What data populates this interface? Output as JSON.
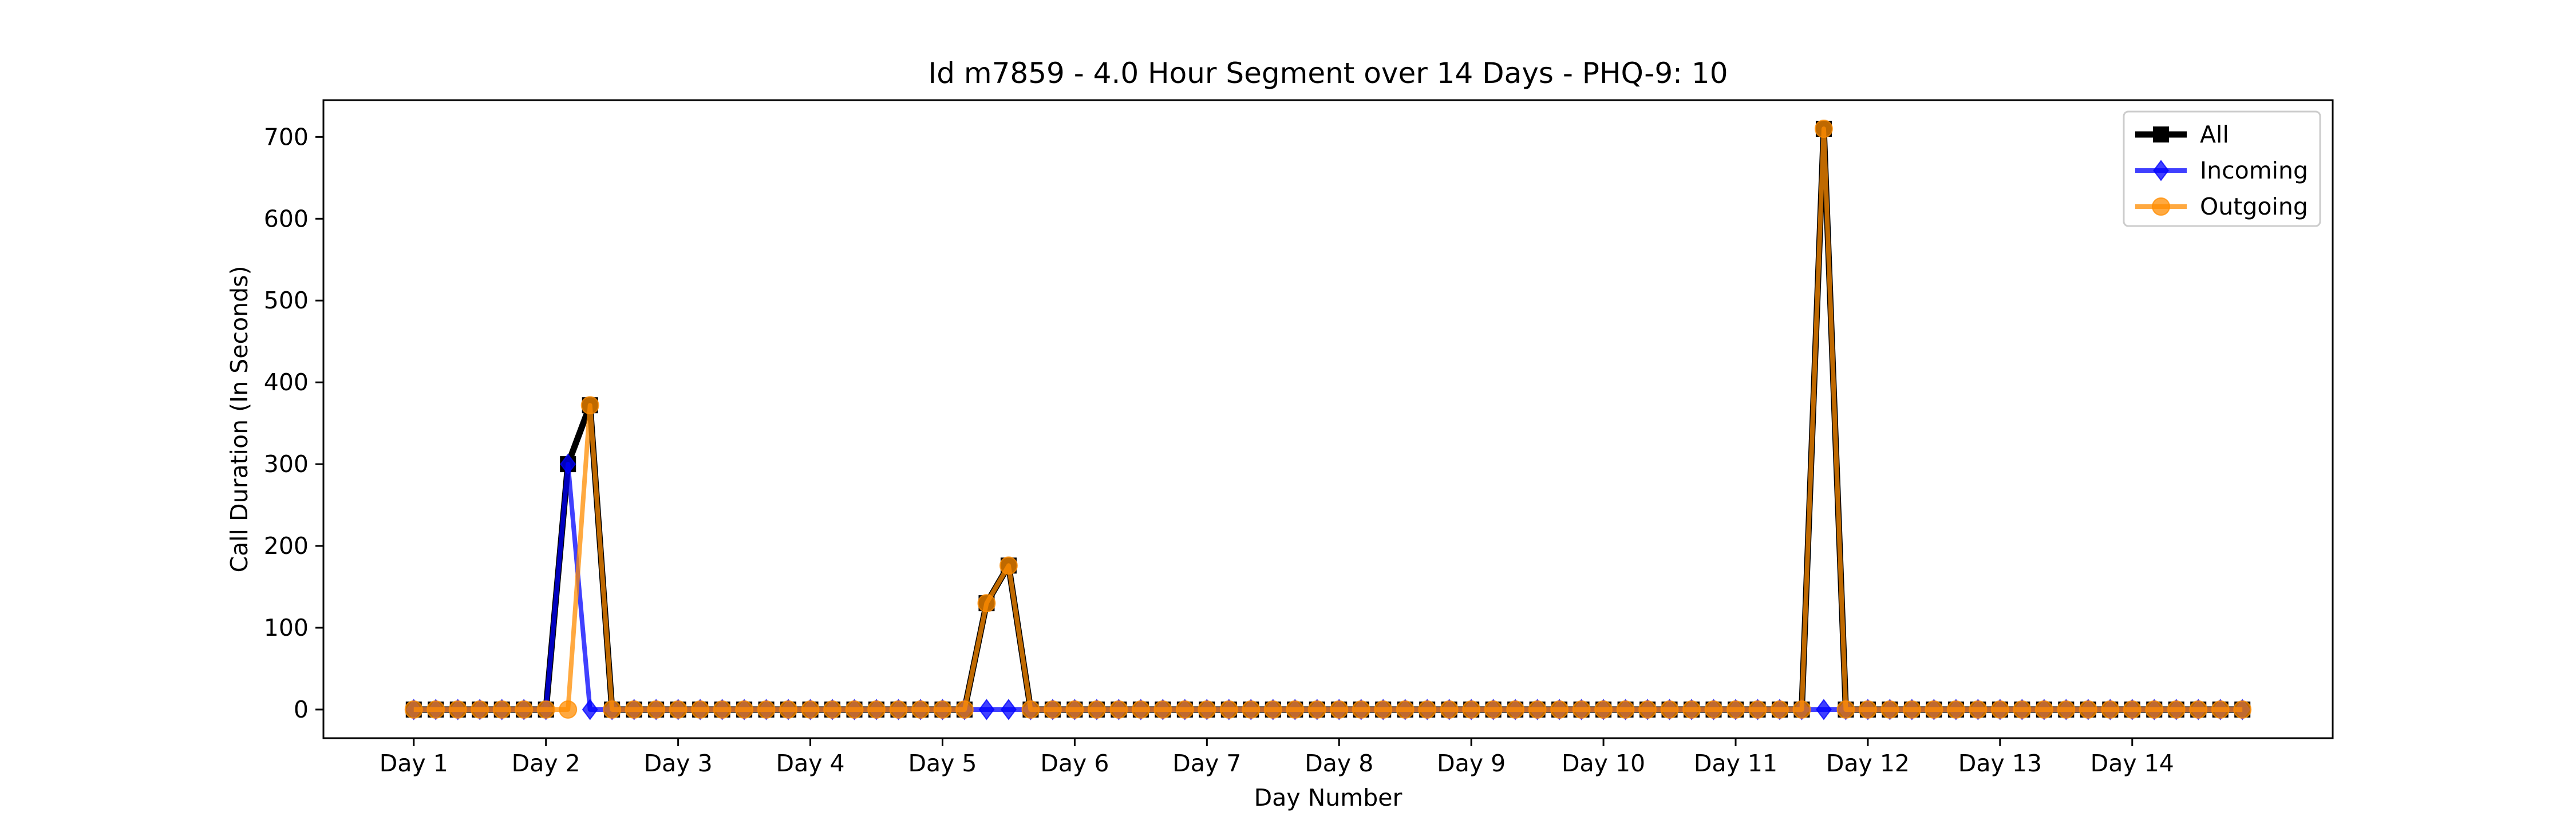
{
  "chart_data": {
    "type": "line",
    "title": "Id m7859 - 4.0 Hour Segment over 14 Days - PHQ-9: 10",
    "xlabel": "Day Number",
    "ylabel": "Call Duration (In Seconds)",
    "ylim": [
      -35,
      745
    ],
    "yticks": [
      0,
      100,
      200,
      300,
      400,
      500,
      600,
      700
    ],
    "xlim": [
      -4.1,
      87.1
    ],
    "xticks": [
      {
        "label": "Day 1",
        "x": 0
      },
      {
        "label": "Day 2",
        "x": 6
      },
      {
        "label": "Day 3",
        "x": 12
      },
      {
        "label": "Day 4",
        "x": 18
      },
      {
        "label": "Day 5",
        "x": 24
      },
      {
        "label": "Day 6",
        "x": 30
      },
      {
        "label": "Day 7",
        "x": 36
      },
      {
        "label": "Day 8",
        "x": 42
      },
      {
        "label": "Day 9",
        "x": 48
      },
      {
        "label": "Day 10",
        "x": 54
      },
      {
        "label": "Day 11",
        "x": 60
      },
      {
        "label": "Day 12",
        "x": 66
      },
      {
        "label": "Day 13",
        "x": 72
      },
      {
        "label": "Day 14",
        "x": 78
      }
    ],
    "grid": false,
    "legend_position": "top-right",
    "series": [
      {
        "name": "All",
        "color": "#000000",
        "marker": "square",
        "values": [
          0,
          0,
          0,
          0,
          0,
          0,
          0,
          300,
          372,
          0,
          0,
          0,
          0,
          0,
          0,
          0,
          0,
          0,
          0,
          0,
          0,
          0,
          0,
          0,
          0,
          0,
          130,
          176,
          0,
          0,
          0,
          0,
          0,
          0,
          0,
          0,
          0,
          0,
          0,
          0,
          0,
          0,
          0,
          0,
          0,
          0,
          0,
          0,
          0,
          0,
          0,
          0,
          0,
          0,
          0,
          0,
          0,
          0,
          0,
          0,
          0,
          0,
          0,
          0,
          710,
          0,
          0,
          0,
          0,
          0,
          0,
          0,
          0,
          0,
          0,
          0,
          0,
          0,
          0,
          0,
          0,
          0,
          0,
          0
        ]
      },
      {
        "name": "Incoming",
        "color": "#0000ff",
        "marker": "diamond",
        "values": [
          0,
          0,
          0,
          0,
          0,
          0,
          0,
          300,
          0,
          0,
          0,
          0,
          0,
          0,
          0,
          0,
          0,
          0,
          0,
          0,
          0,
          0,
          0,
          0,
          0,
          0,
          0,
          0,
          0,
          0,
          0,
          0,
          0,
          0,
          0,
          0,
          0,
          0,
          0,
          0,
          0,
          0,
          0,
          0,
          0,
          0,
          0,
          0,
          0,
          0,
          0,
          0,
          0,
          0,
          0,
          0,
          0,
          0,
          0,
          0,
          0,
          0,
          0,
          0,
          0,
          0,
          0,
          0,
          0,
          0,
          0,
          0,
          0,
          0,
          0,
          0,
          0,
          0,
          0,
          0,
          0,
          0,
          0,
          0
        ]
      },
      {
        "name": "Outgoing",
        "color": "#ff8c00",
        "marker": "circle",
        "values": [
          0,
          0,
          0,
          0,
          0,
          0,
          0,
          0,
          372,
          0,
          0,
          0,
          0,
          0,
          0,
          0,
          0,
          0,
          0,
          0,
          0,
          0,
          0,
          0,
          0,
          0,
          130,
          176,
          0,
          0,
          0,
          0,
          0,
          0,
          0,
          0,
          0,
          0,
          0,
          0,
          0,
          0,
          0,
          0,
          0,
          0,
          0,
          0,
          0,
          0,
          0,
          0,
          0,
          0,
          0,
          0,
          0,
          0,
          0,
          0,
          0,
          0,
          0,
          0,
          710,
          0,
          0,
          0,
          0,
          0,
          0,
          0,
          0,
          0,
          0,
          0,
          0,
          0,
          0,
          0,
          0,
          0,
          0,
          0
        ]
      }
    ]
  }
}
